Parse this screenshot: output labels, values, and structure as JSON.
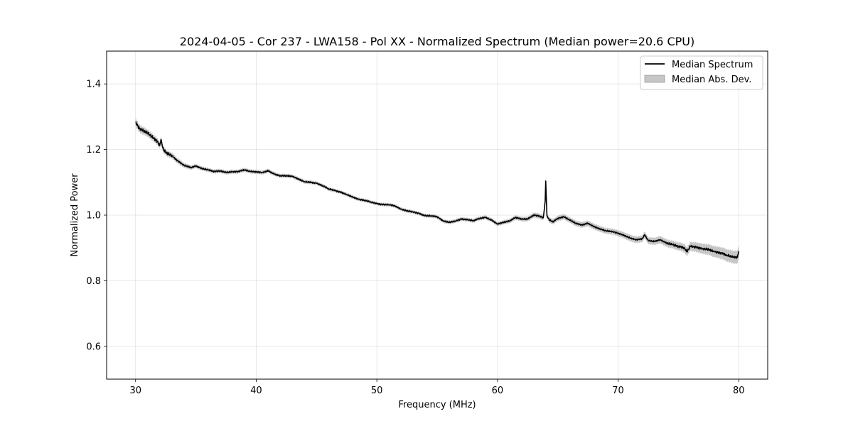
{
  "chart_data": {
    "type": "line",
    "title": "2024-04-05 - Cor 237 - LWA158 - Pol XX - Normalized Spectrum (Median power=20.6 CPU)",
    "xlabel": "Frequency (MHz)",
    "ylabel": "Normalized Power",
    "xlim": [
      27.6,
      82.4
    ],
    "ylim": [
      0.5,
      1.5
    ],
    "xticks": [
      30,
      40,
      50,
      60,
      70,
      80
    ],
    "xtick_labels": [
      "30",
      "40",
      "50",
      "60",
      "70",
      "80"
    ],
    "yticks": [
      0.6,
      0.8,
      1.0,
      1.2,
      1.4
    ],
    "ytick_labels": [
      "0.6",
      "0.8",
      "1.0",
      "1.2",
      "1.4"
    ],
    "grid": true,
    "legend_position": "top-right",
    "colors": {
      "line": "#000000",
      "band": "#808080"
    },
    "series": [
      {
        "name": "Median Spectrum",
        "x": [
          30.0,
          30.3,
          30.6,
          31.0,
          31.4,
          31.8,
          32.0,
          32.1,
          32.3,
          32.6,
          33.0,
          33.4,
          34.0,
          34.6,
          35.0,
          35.5,
          36.0,
          36.5,
          37.0,
          37.5,
          38.0,
          38.5,
          39.0,
          39.5,
          40.0,
          40.5,
          41.0,
          41.5,
          42.0,
          42.5,
          43.0,
          43.5,
          44.0,
          44.5,
          45.0,
          45.5,
          46.0,
          46.5,
          47.0,
          47.5,
          48.0,
          48.5,
          49.0,
          49.5,
          50.0,
          50.5,
          51.0,
          51.5,
          52.0,
          52.5,
          53.0,
          53.5,
          54.0,
          54.5,
          55.0,
          55.5,
          56.0,
          56.5,
          57.0,
          57.5,
          58.0,
          58.5,
          59.0,
          59.5,
          60.0,
          60.5,
          61.0,
          61.5,
          62.0,
          62.5,
          63.0,
          63.4,
          63.8,
          63.95,
          64.0,
          64.1,
          64.3,
          64.6,
          65.0,
          65.5,
          66.0,
          66.5,
          67.0,
          67.5,
          68.0,
          68.5,
          69.0,
          69.5,
          70.0,
          70.5,
          71.0,
          71.5,
          72.0,
          72.2,
          72.5,
          73.0,
          73.5,
          74.0,
          74.5,
          75.0,
          75.5,
          75.7,
          76.0,
          76.5,
          77.0,
          77.5,
          78.0,
          78.5,
          79.0,
          79.5,
          79.9,
          80.0
        ],
        "values": [
          1.283,
          1.265,
          1.258,
          1.25,
          1.238,
          1.225,
          1.212,
          1.23,
          1.2,
          1.188,
          1.182,
          1.168,
          1.152,
          1.145,
          1.15,
          1.142,
          1.138,
          1.133,
          1.135,
          1.13,
          1.132,
          1.133,
          1.138,
          1.133,
          1.132,
          1.13,
          1.135,
          1.125,
          1.12,
          1.12,
          1.118,
          1.11,
          1.102,
          1.1,
          1.097,
          1.09,
          1.08,
          1.075,
          1.07,
          1.063,
          1.055,
          1.048,
          1.045,
          1.04,
          1.035,
          1.032,
          1.032,
          1.028,
          1.018,
          1.013,
          1.01,
          1.005,
          0.998,
          0.998,
          0.995,
          0.982,
          0.978,
          0.982,
          0.988,
          0.986,
          0.983,
          0.99,
          0.993,
          0.985,
          0.973,
          0.978,
          0.982,
          0.993,
          0.988,
          0.988,
          1.0,
          0.998,
          0.992,
          1.04,
          1.104,
          0.998,
          0.985,
          0.98,
          0.99,
          0.995,
          0.985,
          0.975,
          0.97,
          0.975,
          0.965,
          0.958,
          0.952,
          0.95,
          0.945,
          0.938,
          0.93,
          0.925,
          0.928,
          0.94,
          0.922,
          0.92,
          0.925,
          0.915,
          0.91,
          0.905,
          0.9,
          0.888,
          0.905,
          0.902,
          0.898,
          0.895,
          0.888,
          0.885,
          0.878,
          0.872,
          0.872,
          0.89
        ]
      }
    ],
    "band": {
      "name": "Median Abs. Dev.",
      "x": [
        30.0,
        35.0,
        40.0,
        50.0,
        60.0,
        63.9,
        64.0,
        64.1,
        70.0,
        75.0,
        80.0
      ],
      "spread": [
        0.012,
        0.006,
        0.006,
        0.005,
        0.006,
        0.008,
        0.016,
        0.008,
        0.009,
        0.012,
        0.02
      ]
    }
  }
}
